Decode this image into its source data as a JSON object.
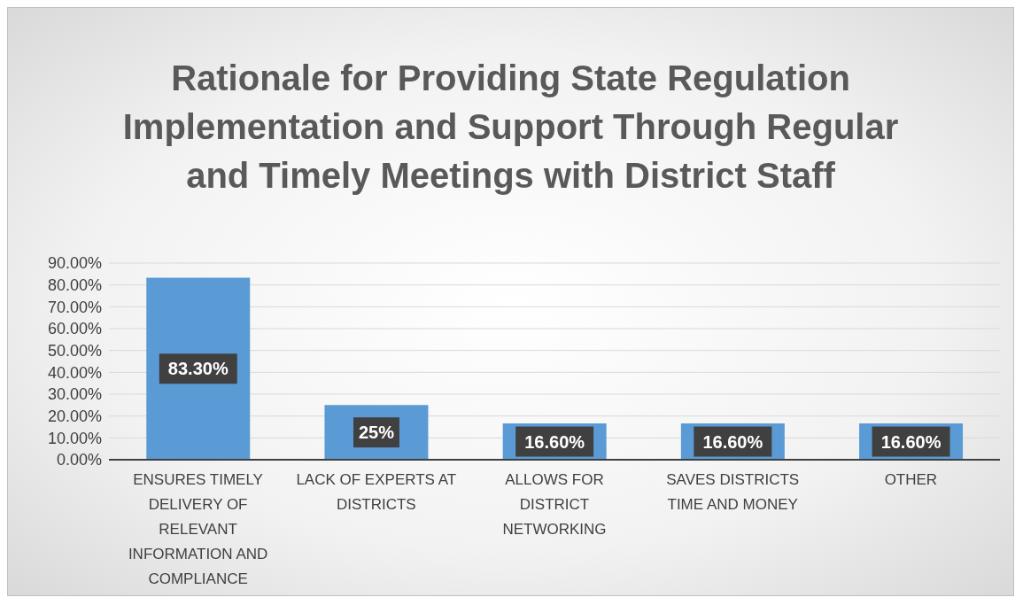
{
  "chart_data": {
    "type": "bar",
    "title": "Rationale for Providing State Regulation Implementation and Support Through Regular and Timely Meetings with District Staff",
    "categories": [
      "ENSURES TIMELY DELIVERY OF RELEVANT INFORMATION AND COMPLIANCE",
      "LACK OF EXPERTS AT DISTRICTS",
      "ALLOWS FOR DISTRICT NETWORKING",
      "SAVES DISTRICTS TIME AND MONEY",
      "OTHER"
    ],
    "values": [
      83.3,
      25,
      16.6,
      16.6,
      16.6
    ],
    "value_labels": [
      "83.30%",
      "25%",
      "16.60%",
      "16.60%",
      "16.60%"
    ],
    "color": "#5b9bd5",
    "ylim": [
      0,
      90
    ],
    "yticks": [
      {
        "value": 0,
        "label": "0.00%"
      },
      {
        "value": 10,
        "label": "10.00%"
      },
      {
        "value": 20,
        "label": "20.00%"
      },
      {
        "value": 30,
        "label": "30.00%"
      },
      {
        "value": 40,
        "label": "40.00%"
      },
      {
        "value": 50,
        "label": "50.00%"
      },
      {
        "value": 60,
        "label": "60.00%"
      },
      {
        "value": 70,
        "label": "70.00%"
      },
      {
        "value": 80,
        "label": "80.00%"
      },
      {
        "value": 90,
        "label": "90.00%"
      }
    ],
    "grid": "y",
    "legend": false
  }
}
